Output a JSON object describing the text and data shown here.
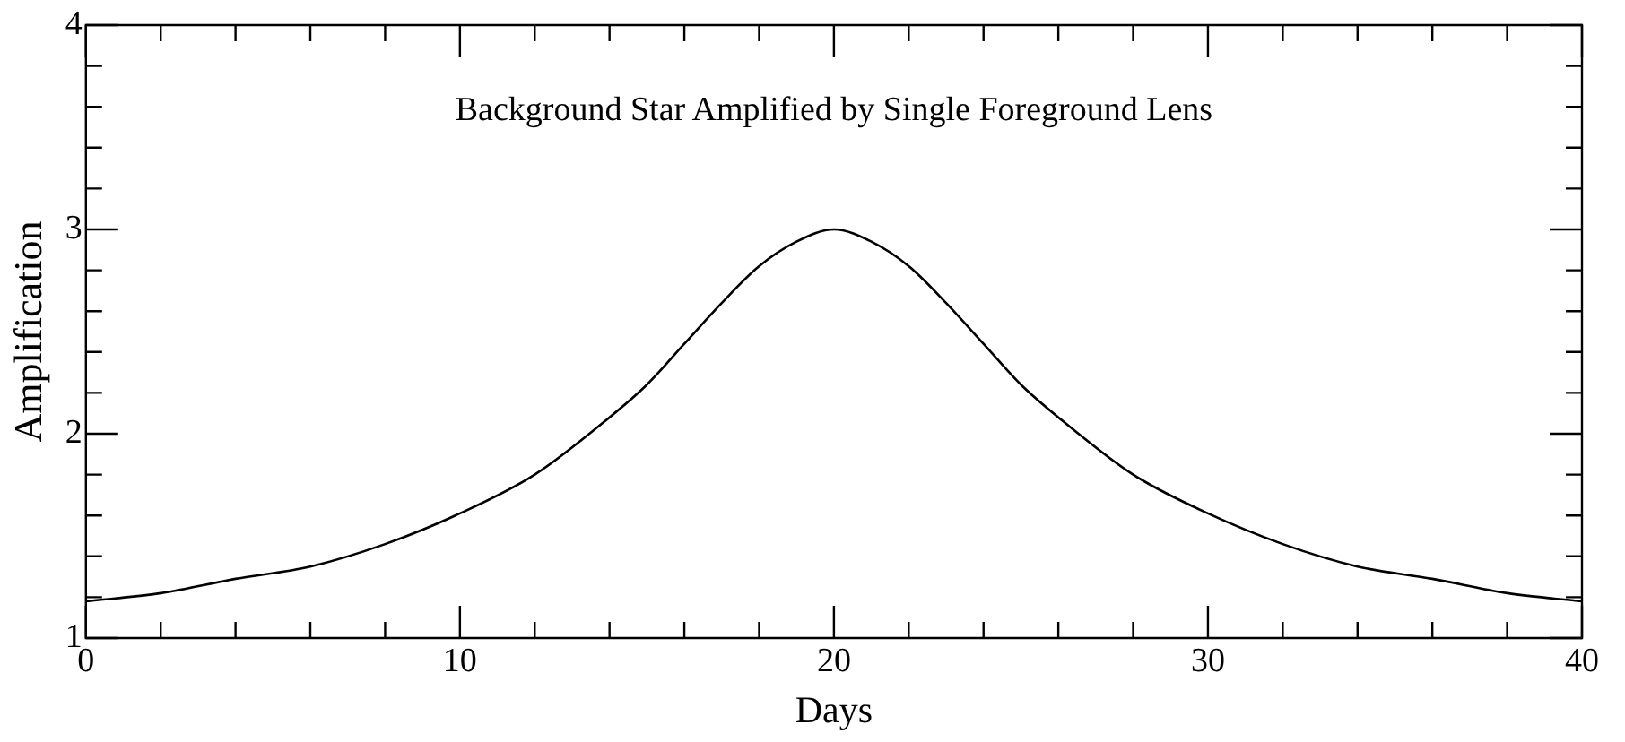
{
  "chart_data": {
    "type": "line",
    "title": "Background Star Amplified by Single Foreground Lens",
    "xlabel": "Days",
    "ylabel": "Amplification",
    "color": "#000000",
    "x": [
      0,
      2,
      4,
      6,
      8,
      10,
      12,
      14,
      15,
      16,
      17,
      18,
      19,
      20,
      21,
      22,
      23,
      24,
      25,
      26,
      28,
      30,
      32,
      34,
      36,
      38,
      40
    ],
    "values": [
      1.18,
      1.22,
      1.29,
      1.35,
      1.46,
      1.61,
      1.8,
      2.08,
      2.24,
      2.44,
      2.64,
      2.82,
      2.94,
      3.0,
      2.94,
      2.82,
      2.64,
      2.44,
      2.24,
      2.08,
      1.8,
      1.61,
      1.46,
      1.35,
      1.29,
      1.22,
      1.18
    ],
    "xlim": [
      0,
      40
    ],
    "ylim": [
      1,
      4
    ],
    "xticks": [
      0,
      {
        "value": 2,
        "label": null
      },
      {
        "value": 4,
        "label": null
      },
      {
        "value": 6,
        "label": null
      },
      {
        "value": 8,
        "label": null
      },
      10,
      {
        "value": 12,
        "label": null
      },
      {
        "value": 14,
        "label": null
      },
      {
        "value": 16,
        "label": null
      },
      {
        "value": 18,
        "label": null
      },
      20,
      {
        "value": 22,
        "label": null
      },
      {
        "value": 24,
        "label": null
      },
      {
        "value": 26,
        "label": null
      },
      {
        "value": 28,
        "label": null
      },
      30,
      {
        "value": 32,
        "label": null
      },
      {
        "value": 34,
        "label": null
      },
      {
        "value": 36,
        "label": null
      },
      {
        "value": 38,
        "label": null
      },
      40
    ],
    "yticks": [
      1,
      {
        "value": 1.2,
        "label": null
      },
      {
        "value": 1.4,
        "label": null
      },
      {
        "value": 1.6,
        "label": null
      },
      {
        "value": 1.8,
        "label": null
      },
      2,
      {
        "value": 2.2,
        "label": null
      },
      {
        "value": 2.4,
        "label": null
      },
      {
        "value": 2.6,
        "label": null
      },
      {
        "value": 2.8,
        "label": null
      },
      3,
      {
        "value": 3.2,
        "label": null
      },
      {
        "value": 3.4,
        "label": null
      },
      {
        "value": 3.6,
        "label": null
      },
      {
        "value": 3.8,
        "label": null
      },
      4
    ],
    "grid": false,
    "legend": false,
    "marker": "none",
    "line_style": "solid"
  }
}
